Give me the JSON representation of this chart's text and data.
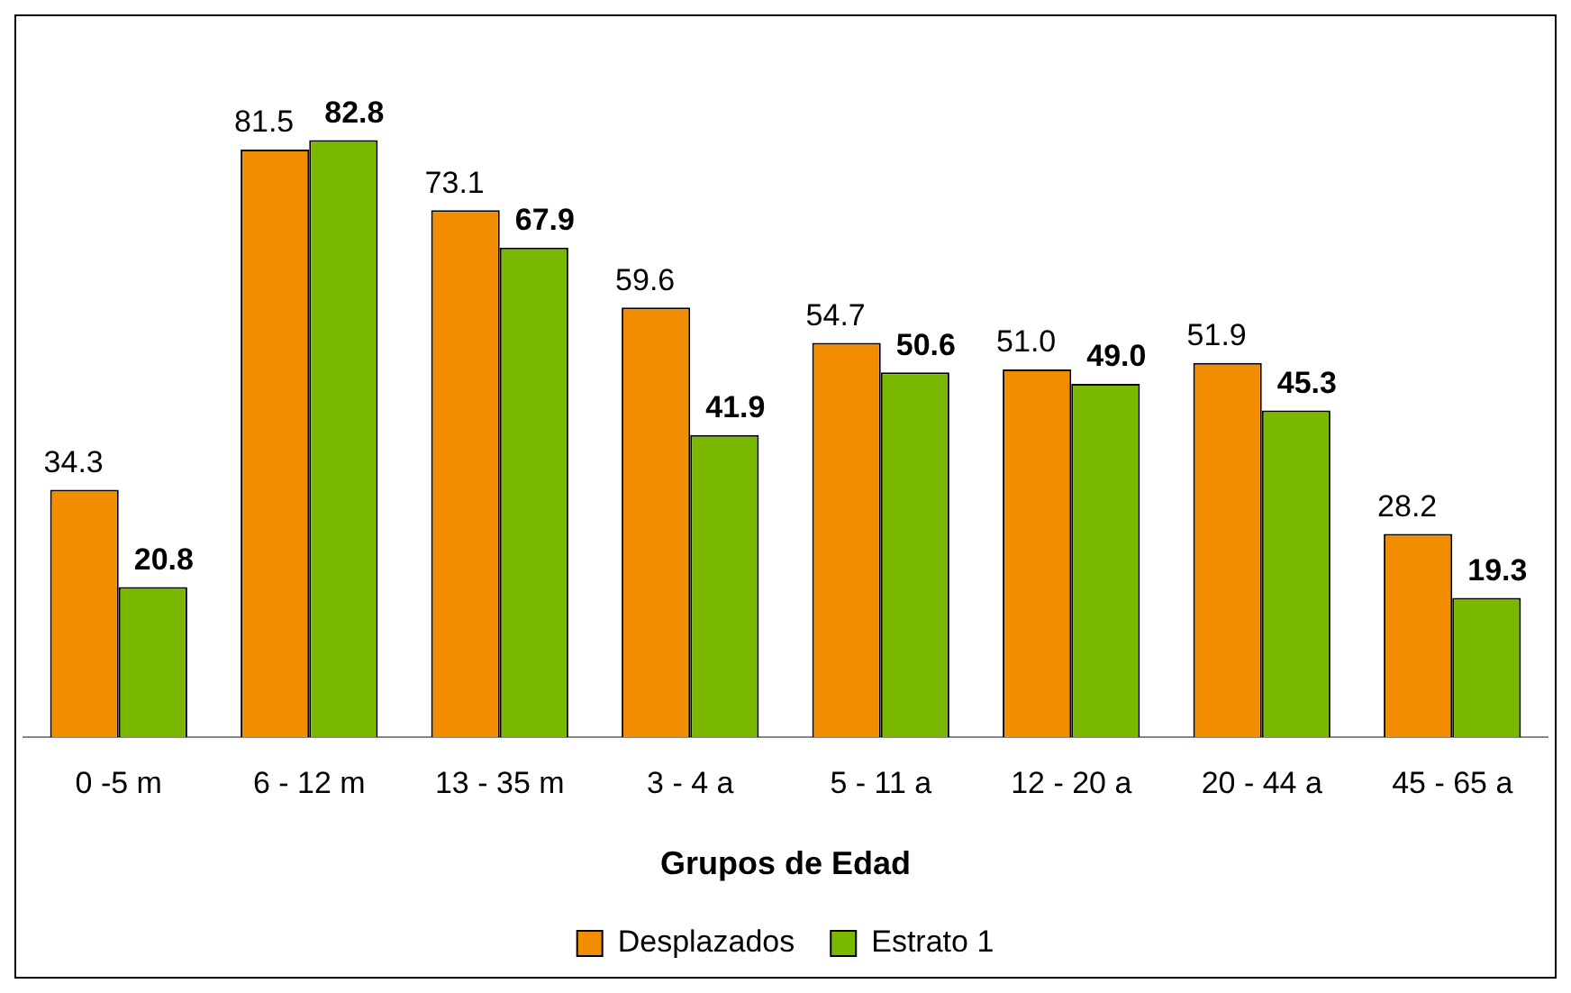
{
  "chart_data": {
    "type": "bar",
    "xlabel": "Grupos de Edad",
    "categories": [
      "0 -5 m",
      "6 - 12 m",
      "13 - 35 m",
      "3 - 4 a",
      "5 - 11 a",
      "12 - 20 a",
      "20 - 44 a",
      "45 - 65 a"
    ],
    "series": [
      {
        "name": "Desplazados",
        "color": "#f28c00",
        "values": [
          34.3,
          81.5,
          73.1,
          59.6,
          54.7,
          51.0,
          51.9,
          28.2
        ],
        "value_labels": [
          "34.3",
          "81.5",
          "73.1",
          "59.6",
          "54.7",
          "51.0",
          "51.9",
          "28.2"
        ]
      },
      {
        "name": "Estrato 1",
        "color": "#7ab800",
        "values": [
          20.8,
          82.8,
          67.9,
          41.9,
          50.6,
          49.0,
          45.3,
          19.3
        ],
        "value_labels": [
          "20.8",
          "82.8",
          "67.9",
          "41.9",
          "50.6",
          "49.0",
          "45.3",
          "19.3"
        ]
      }
    ],
    "legend": "bottom",
    "grid": false
  }
}
